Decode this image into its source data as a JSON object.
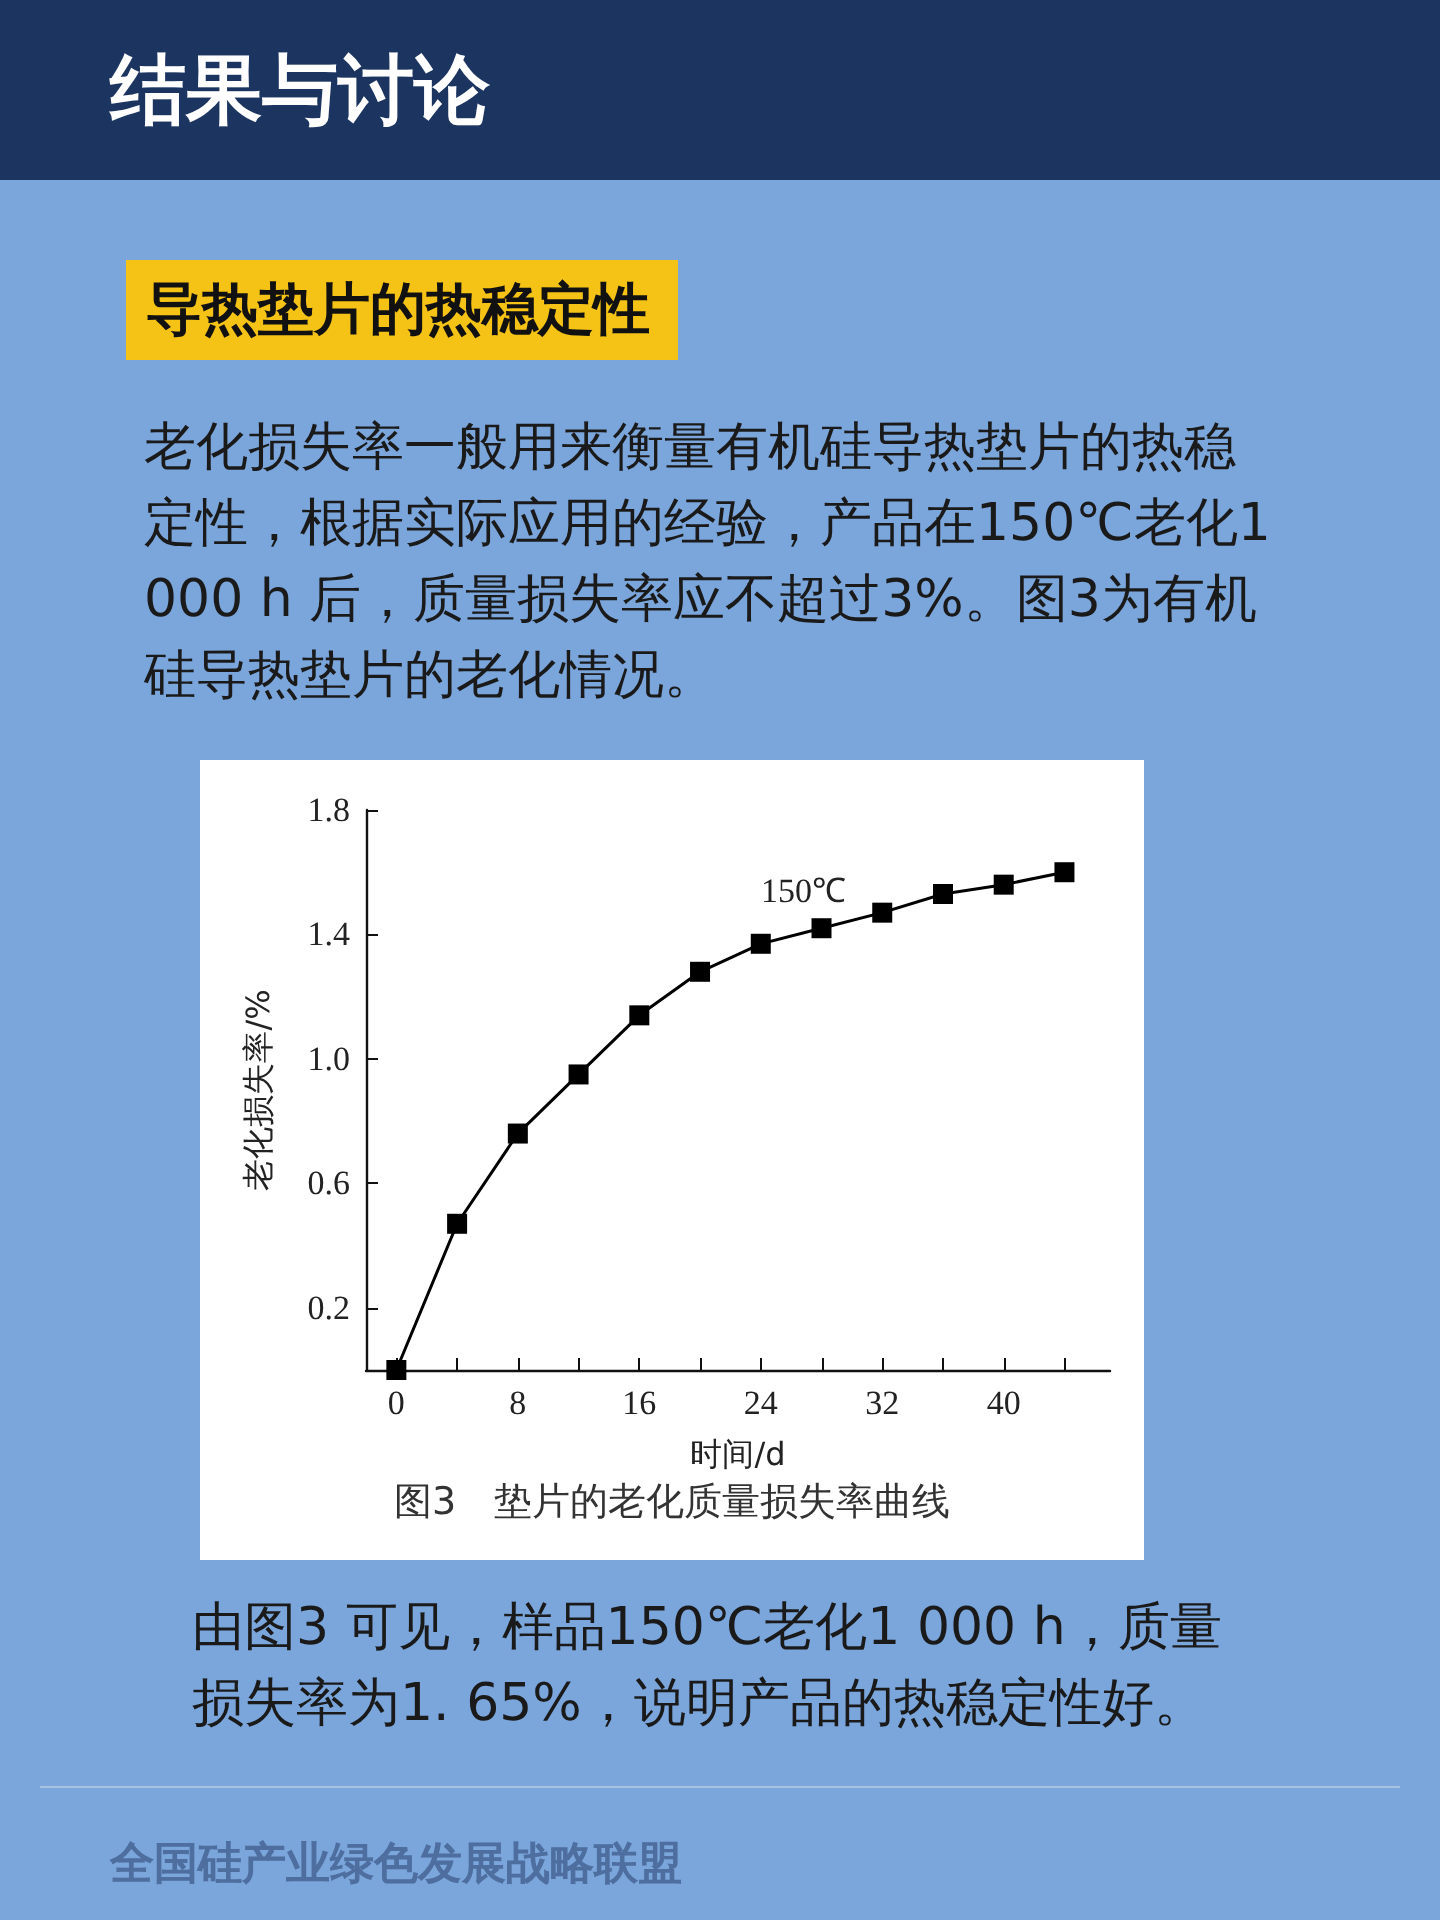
{
  "chart_data": {
    "type": "line",
    "title": "结果与讨论",
    "subtitle": "导热垫片的热稳定性",
    "xlabel": "时间/d",
    "ylabel": "老化损失率/%",
    "annotations": [
      "老化损失率一般用来衡量有机硅导热垫片的热稳定性，根据实际应用的经验，产品在150℃老化1 000 h 后，质量损失率应不超过3%。图3为有机硅导热垫片的老化情况。",
      "图3　垫片的老化质量损失率曲线",
      "由图3 可见，样品150℃老化1 000 h，质量损失率为1. 65%，说明产品的热稳定性好。",
      "全国硅产业绿色发展战略联盟"
    ],
    "x": [
      0,
      4,
      8,
      12,
      16,
      20,
      24,
      28,
      32,
      36,
      40,
      44
    ],
    "series": [
      {
        "name": "150℃",
        "color": "#000000",
        "values": [
          0,
          0.47,
          0.76,
          0.95,
          1.14,
          1.28,
          1.37,
          1.42,
          1.47,
          1.53,
          1.56,
          1.6
        ]
      }
    ],
    "xlim": [
      -2,
      47
    ],
    "xticks": [
      0,
      {
        "value": 4,
        "label": null
      },
      8,
      {
        "value": 12,
        "label": null
      },
      16,
      {
        "value": 20,
        "label": null
      },
      24,
      {
        "value": 28,
        "label": null
      },
      32,
      {
        "value": 36,
        "label": null
      },
      40,
      {
        "value": 44,
        "label": null
      }
    ],
    "ylim": [
      0,
      1.8
    ],
    "yticks": [
      0.2,
      0.6,
      {
        "value": 1,
        "label": "1.0"
      },
      1.4,
      1.8
    ],
    "grid": false,
    "legend": false,
    "marker": "square",
    "line_style": "solid"
  }
}
